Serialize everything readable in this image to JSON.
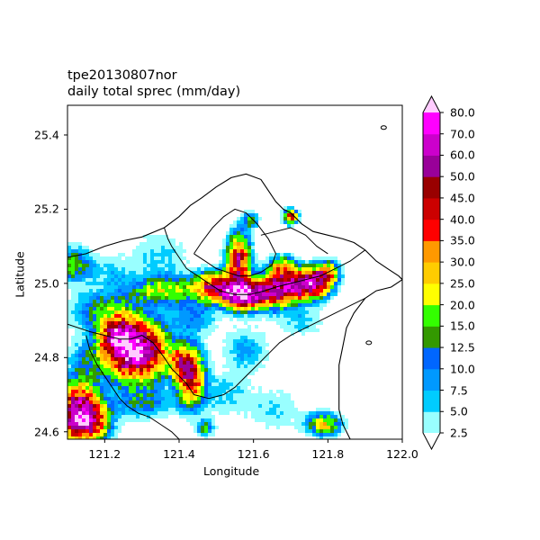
{
  "figure": {
    "title_line1": "tpe20130807nor",
    "title_line2": "daily total sprec (mm/day)",
    "xlabel": "Longitude",
    "ylabel": "Latitude"
  },
  "map_data": {
    "type": "filled-contour-map",
    "x_range": [
      121.1,
      122.0
    ],
    "y_range": [
      24.58,
      25.48
    ],
    "x_ticks": [
      "121.2",
      "121.4",
      "121.6",
      "121.8",
      "122.0"
    ],
    "x_tick_values": [
      121.2,
      121.4,
      121.6,
      121.8,
      122.0
    ],
    "y_ticks": [
      "24.6",
      "24.8",
      "25.0",
      "25.2",
      "25.4"
    ],
    "y_tick_values": [
      24.6,
      24.8,
      25.0,
      25.2,
      25.4
    ],
    "colorbar": {
      "labels": [
        "2.5",
        "5.0",
        "7.5",
        "10.0",
        "12.5",
        "15.0",
        "20.0",
        "25.0",
        "30.0",
        "35.0",
        "40.0",
        "45.0",
        "50.0",
        "60.0",
        "70.0",
        "80.0"
      ],
      "colors": [
        "#99ffff",
        "#00ccff",
        "#0099ff",
        "#0066ff",
        "#339900",
        "#33ff00",
        "#ffff00",
        "#ffcc00",
        "#ff9900",
        "#ff0000",
        "#cc0000",
        "#990000",
        "#990099",
        "#cc00cc",
        "#ff00ff"
      ],
      "over_color": "#ffccff",
      "under_color": "#ffffff",
      "extend": "both"
    },
    "rain_cells": [
      {
        "lon": 121.28,
        "lat": 24.82,
        "peak": 75,
        "rx": 0.055,
        "ry": 0.05
      },
      {
        "lon": 121.24,
        "lat": 24.86,
        "peak": 40,
        "rx": 0.03,
        "ry": 0.03
      },
      {
        "lon": 121.14,
        "lat": 24.63,
        "peak": 75,
        "rx": 0.04,
        "ry": 0.035
      },
      {
        "lon": 121.13,
        "lat": 24.69,
        "peak": 30,
        "rx": 0.035,
        "ry": 0.03
      },
      {
        "lon": 121.43,
        "lat": 24.75,
        "peak": 45,
        "rx": 0.025,
        "ry": 0.05
      },
      {
        "lon": 121.4,
        "lat": 24.79,
        "peak": 25,
        "rx": 0.02,
        "ry": 0.025
      },
      {
        "lon": 121.5,
        "lat": 24.99,
        "peak": 45,
        "rx": 0.04,
        "ry": 0.025
      },
      {
        "lon": 121.57,
        "lat": 24.97,
        "peak": 75,
        "rx": 0.035,
        "ry": 0.025
      },
      {
        "lon": 121.56,
        "lat": 25.06,
        "peak": 50,
        "rx": 0.02,
        "ry": 0.045
      },
      {
        "lon": 121.65,
        "lat": 24.98,
        "peak": 45,
        "rx": 0.035,
        "ry": 0.03
      },
      {
        "lon": 121.7,
        "lat": 24.99,
        "peak": 40,
        "rx": 0.03,
        "ry": 0.025
      },
      {
        "lon": 121.76,
        "lat": 25.0,
        "peak": 65,
        "rx": 0.03,
        "ry": 0.025
      },
      {
        "lon": 121.8,
        "lat": 25.03,
        "peak": 30,
        "rx": 0.02,
        "ry": 0.02
      },
      {
        "lon": 121.68,
        "lat": 25.04,
        "peak": 30,
        "rx": 0.025,
        "ry": 0.02
      },
      {
        "lon": 121.36,
        "lat": 24.98,
        "peak": 20,
        "rx": 0.06,
        "ry": 0.025
      },
      {
        "lon": 121.2,
        "lat": 24.93,
        "peak": 14,
        "rx": 0.06,
        "ry": 0.035
      },
      {
        "lon": 121.12,
        "lat": 25.05,
        "peak": 18,
        "rx": 0.03,
        "ry": 0.03
      },
      {
        "lon": 121.7,
        "lat": 25.18,
        "peak": 45,
        "rx": 0.012,
        "ry": 0.012
      },
      {
        "lon": 121.59,
        "lat": 25.17,
        "peak": 15,
        "rx": 0.015,
        "ry": 0.015
      },
      {
        "lon": 121.79,
        "lat": 24.62,
        "peak": 25,
        "rx": 0.03,
        "ry": 0.02
      },
      {
        "lon": 121.47,
        "lat": 24.61,
        "peak": 15,
        "rx": 0.015,
        "ry": 0.015
      },
      {
        "lon": 121.3,
        "lat": 24.68,
        "peak": 12,
        "rx": 0.05,
        "ry": 0.03
      },
      {
        "lon": 121.58,
        "lat": 24.82,
        "peak": 8,
        "rx": 0.04,
        "ry": 0.04
      },
      {
        "lon": 121.52,
        "lat": 24.7,
        "peak": 6,
        "rx": 0.05,
        "ry": 0.04
      },
      {
        "lon": 121.66,
        "lat": 24.66,
        "peak": 5,
        "rx": 0.05,
        "ry": 0.04
      },
      {
        "lon": 121.44,
        "lat": 24.91,
        "peak": 10,
        "rx": 0.04,
        "ry": 0.03
      },
      {
        "lon": 121.73,
        "lat": 24.9,
        "peak": 6,
        "rx": 0.04,
        "ry": 0.03
      },
      {
        "lon": 121.35,
        "lat": 25.07,
        "peak": 6,
        "rx": 0.05,
        "ry": 0.05
      },
      {
        "lon": 121.22,
        "lat": 25.03,
        "peak": 6,
        "rx": 0.04,
        "ry": 0.03
      },
      {
        "lon": 121.14,
        "lat": 24.76,
        "peak": 10,
        "rx": 0.03,
        "ry": 0.05
      }
    ],
    "outlines": {
      "coast": [
        [
          121.1,
          25.07
        ],
        [
          121.15,
          25.08
        ],
        [
          121.2,
          25.1
        ],
        [
          121.25,
          25.115
        ],
        [
          121.3,
          25.125
        ],
        [
          121.36,
          25.15
        ],
        [
          121.4,
          25.18
        ],
        [
          121.43,
          25.21
        ],
        [
          121.46,
          25.23
        ],
        [
          121.5,
          25.26
        ],
        [
          121.54,
          25.285
        ],
        [
          121.58,
          25.295
        ],
        [
          121.62,
          25.28
        ],
        [
          121.64,
          25.25
        ],
        [
          121.66,
          25.22
        ],
        [
          121.68,
          25.2
        ],
        [
          121.7,
          25.19
        ],
        [
          121.73,
          25.16
        ],
        [
          121.76,
          25.14
        ],
        [
          121.8,
          25.13
        ],
        [
          121.84,
          25.12
        ],
        [
          121.87,
          25.11
        ],
        [
          121.9,
          25.09
        ],
        [
          121.93,
          25.06
        ],
        [
          121.96,
          25.04
        ],
        [
          121.99,
          25.02
        ],
        [
          122.0,
          25.01
        ],
        [
          121.97,
          24.99
        ],
        [
          121.93,
          24.98
        ],
        [
          121.9,
          24.96
        ],
        [
          121.87,
          24.92
        ],
        [
          121.85,
          24.88
        ],
        [
          121.84,
          24.83
        ],
        [
          121.83,
          24.78
        ],
        [
          121.83,
          24.72
        ],
        [
          121.83,
          24.66
        ],
        [
          121.84,
          24.62
        ],
        [
          121.86,
          24.58
        ]
      ],
      "sub": [
        [
          [
            121.1,
            24.89
          ],
          [
            121.16,
            24.87
          ],
          [
            121.2,
            24.86
          ],
          [
            121.24,
            24.85
          ],
          [
            121.27,
            24.85
          ],
          [
            121.3,
            24.86
          ],
          [
            121.33,
            24.84
          ],
          [
            121.36,
            24.8
          ],
          [
            121.38,
            24.77
          ],
          [
            121.4,
            24.75
          ],
          [
            121.42,
            24.73
          ],
          [
            121.44,
            24.7
          ],
          [
            121.48,
            24.69
          ],
          [
            121.52,
            24.7
          ],
          [
            121.55,
            24.72
          ],
          [
            121.58,
            24.75
          ],
          [
            121.61,
            24.78
          ],
          [
            121.64,
            24.81
          ],
          [
            121.67,
            24.84
          ],
          [
            121.7,
            24.86
          ],
          [
            121.74,
            24.88
          ],
          [
            121.78,
            24.9
          ],
          [
            121.82,
            24.92
          ],
          [
            121.86,
            24.94
          ],
          [
            121.9,
            24.96
          ]
        ],
        [
          [
            121.15,
            24.86
          ],
          [
            121.16,
            24.82
          ],
          [
            121.18,
            24.78
          ],
          [
            121.2,
            24.75
          ],
          [
            121.22,
            24.72
          ],
          [
            121.24,
            24.69
          ],
          [
            121.26,
            24.67
          ],
          [
            121.29,
            24.65
          ],
          [
            121.32,
            24.64
          ],
          [
            121.35,
            24.62
          ],
          [
            121.38,
            24.6
          ],
          [
            121.4,
            24.58
          ]
        ],
        [
          [
            121.36,
            25.15
          ],
          [
            121.37,
            25.12
          ],
          [
            121.38,
            25.1
          ],
          [
            121.4,
            25.07
          ],
          [
            121.42,
            25.04
          ],
          [
            121.45,
            25.02
          ],
          [
            121.48,
            25.0
          ],
          [
            121.51,
            24.98
          ],
          [
            121.55,
            24.97
          ],
          [
            121.59,
            24.97
          ],
          [
            121.63,
            24.98
          ],
          [
            121.66,
            24.99
          ],
          [
            121.7,
            25.0
          ],
          [
            121.74,
            25.01
          ],
          [
            121.78,
            25.02
          ],
          [
            121.82,
            25.04
          ],
          [
            121.86,
            25.06
          ],
          [
            121.9,
            25.09
          ]
        ],
        [
          [
            121.44,
            25.08
          ],
          [
            121.46,
            25.11
          ],
          [
            121.49,
            25.15
          ],
          [
            121.52,
            25.18
          ],
          [
            121.55,
            25.2
          ],
          [
            121.58,
            25.19
          ],
          [
            121.61,
            25.16
          ],
          [
            121.64,
            25.12
          ],
          [
            121.66,
            25.08
          ],
          [
            121.65,
            25.05
          ],
          [
            121.62,
            25.03
          ],
          [
            121.59,
            25.02
          ],
          [
            121.56,
            25.02
          ],
          [
            121.53,
            25.03
          ],
          [
            121.5,
            25.04
          ],
          [
            121.47,
            25.06
          ],
          [
            121.44,
            25.08
          ]
        ],
        [
          [
            121.62,
            25.13
          ],
          [
            121.66,
            25.14
          ],
          [
            121.7,
            25.15
          ],
          [
            121.74,
            25.13
          ],
          [
            121.77,
            25.1
          ],
          [
            121.8,
            25.08
          ]
        ]
      ],
      "islets": [
        [
          121.91,
          24.84
        ],
        [
          121.95,
          25.42
        ]
      ]
    }
  }
}
